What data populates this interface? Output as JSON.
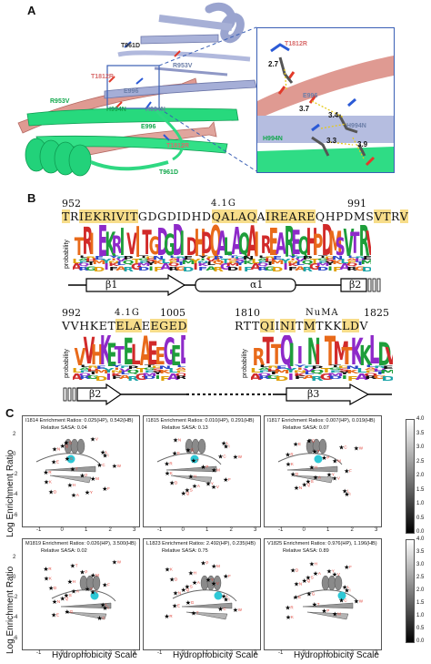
{
  "panels": {
    "a": "A",
    "b": "B",
    "c": "C"
  },
  "panel_a": {
    "labels_overview": [
      "T961D",
      "T1812R",
      "R953V",
      "E996",
      "R953V",
      "H994N",
      "H994N",
      "E996",
      "T1812R",
      "T961D"
    ],
    "labels_inset": [
      "T1812R",
      "E996",
      "H994N",
      "H994N"
    ],
    "distances": [
      "2.7",
      "3.7",
      "3.4",
      "3.3",
      "3.9"
    ]
  },
  "panel_b": {
    "row1": {
      "start": "952",
      "end": "991",
      "region": "4.1G",
      "sequence": [
        {
          "t": "T",
          "h": true
        },
        {
          "t": "R",
          "h": false
        },
        {
          "t": "I",
          "h": true
        },
        {
          "t": "E",
          "h": true
        },
        {
          "t": "K",
          "h": true
        },
        {
          "t": "R",
          "h": true
        },
        {
          "t": "I",
          "h": true
        },
        {
          "t": "V",
          "h": true
        },
        {
          "t": "I",
          "h": true
        },
        {
          "t": "T",
          "h": true
        },
        {
          "t": "G",
          "h": false
        },
        {
          "t": "D",
          "h": false
        },
        {
          "t": "G",
          "h": false
        },
        {
          "t": "D",
          "h": false
        },
        {
          "t": "I",
          "h": false
        },
        {
          "t": "D",
          "h": false
        },
        {
          "t": "H",
          "h": false
        },
        {
          "t": "D",
          "h": false
        },
        {
          "t": "Q",
          "h": true
        },
        {
          "t": "A",
          "h": true
        },
        {
          "t": "L",
          "h": true
        },
        {
          "t": "A",
          "h": true
        },
        {
          "t": "Q",
          "h": true
        },
        {
          "t": "A",
          "h": false
        },
        {
          "t": "I",
          "h": true
        },
        {
          "t": "R",
          "h": true
        },
        {
          "t": "E",
          "h": true
        },
        {
          "t": "A",
          "h": true
        },
        {
          "t": "R",
          "h": true
        },
        {
          "t": "E",
          "h": true
        },
        {
          "t": "Q",
          "h": false
        },
        {
          "t": "H",
          "h": false
        },
        {
          "t": "P",
          "h": false
        },
        {
          "t": "D",
          "h": false
        },
        {
          "t": "M",
          "h": false
        },
        {
          "t": "S",
          "h": false
        },
        {
          "t": "V",
          "h": true
        },
        {
          "t": "T",
          "h": true
        },
        {
          "t": "R",
          "h": false
        },
        {
          "t": "V",
          "h": true
        }
      ],
      "axis_label": "probability"
    },
    "row2": {
      "start": "992",
      "end": "1005",
      "region": "4.1G",
      "sequence": [
        {
          "t": "V",
          "h": false
        },
        {
          "t": "V",
          "h": false
        },
        {
          "t": "H",
          "h": false
        },
        {
          "t": "K",
          "h": false
        },
        {
          "t": "E",
          "h": false
        },
        {
          "t": "T",
          "h": false
        },
        {
          "t": "E",
          "h": true
        },
        {
          "t": "L",
          "h": true
        },
        {
          "t": "A",
          "h": true
        },
        {
          "t": "E",
          "h": false
        },
        {
          "t": "E",
          "h": true
        },
        {
          "t": "G",
          "h": true
        },
        {
          "t": "E",
          "h": true
        },
        {
          "t": "D",
          "h": true
        }
      ],
      "axis_label": "probability"
    },
    "row3": {
      "start": "1810",
      "end": "1825",
      "region": "NuMA",
      "sequence": [
        {
          "t": "R",
          "h": false
        },
        {
          "t": "T",
          "h": false
        },
        {
          "t": "T",
          "h": false
        },
        {
          "t": "Q",
          "h": true
        },
        {
          "t": "I",
          "h": true
        },
        {
          "t": "I",
          "h": false
        },
        {
          "t": "N",
          "h": true
        },
        {
          "t": "I",
          "h": true
        },
        {
          "t": "T",
          "h": false
        },
        {
          "t": "M",
          "h": true
        },
        {
          "t": "T",
          "h": false
        },
        {
          "t": "K",
          "h": false
        },
        {
          "t": "K",
          "h": false
        },
        {
          "t": "L",
          "h": true
        },
        {
          "t": "D",
          "h": true
        },
        {
          "t": "V",
          "h": false
        }
      ],
      "axis_label": "probability"
    },
    "topology": {
      "beta1": "β1",
      "alpha1": "α1",
      "beta2": "β2",
      "beta2b": "β2",
      "beta3": "β3"
    }
  },
  "panel_c": {
    "y_axis_title": "Log Enrichment Ratio",
    "x_axis_title": "Hydrophobicity Scale",
    "plots": [
      {
        "title": "I1814  Enrichment Ratios: 0.025(HP), 0.542(HB)",
        "sasa": "Relative SASA:  0.04"
      },
      {
        "title": "I1815  Enrichment Ratios: 0.010(HP), 0.291(HB)",
        "sasa": "Relative SASA:  0.13"
      },
      {
        "title": "I1817  Enrichment Ratios: 0.007(HP), 0.019(HB)",
        "sasa": "Relative SASA:  0.07"
      },
      {
        "title": "M1819  Enrichment Ratios: 0.026(HP), 3.500(HB)",
        "sasa": "Relative SASA:  0.02"
      },
      {
        "title": "L1823  Enrichment Ratios: 2.492(HP), 0.235(HB)",
        "sasa": "Relative SASA:  0.75"
      },
      {
        "title": "V1825  Enrichment Ratios: 0.976(HP), 1.196(HB)",
        "sasa": "Relative SASA:  0.89"
      }
    ],
    "x_ticks": [
      "-1",
      "0",
      "1",
      "2",
      "3"
    ],
    "y_ticks": [
      "2",
      "0",
      "-2",
      "-4",
      "-6"
    ],
    "colorbar_ticks": [
      "4.0",
      "3.5",
      "3.0",
      "2.5",
      "2.0",
      "1.5",
      "1.0",
      "0.5",
      "0.0"
    ]
  },
  "colors": {
    "pink": "#d98a82",
    "green": "#1fd67a",
    "slate": "#9aa4cf",
    "highlight": "#f7dd8a",
    "star_red": "#e0443a"
  }
}
